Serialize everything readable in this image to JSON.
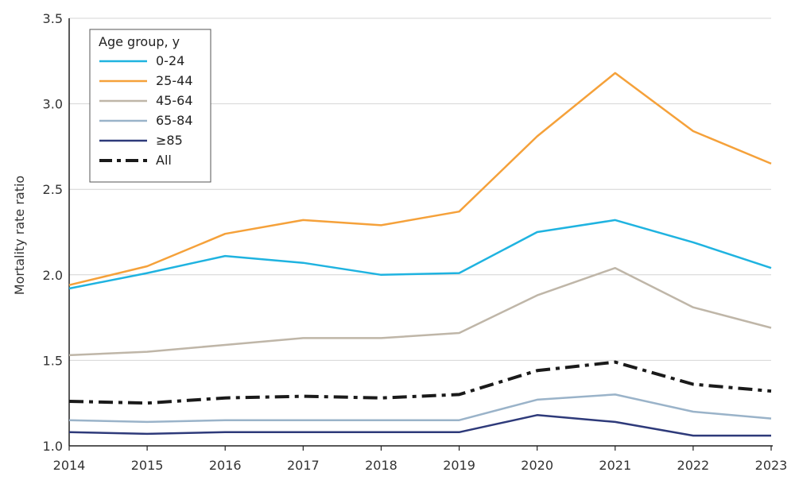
{
  "chart_data": {
    "type": "line",
    "xlabel": "",
    "ylabel": "Mortality rate ratio",
    "x": [
      "2014",
      "2015",
      "2016",
      "2017",
      "2018",
      "2019",
      "2020",
      "2021",
      "2022",
      "2023"
    ],
    "ylim": [
      1.0,
      3.5
    ],
    "yticks": [
      "1.0",
      "1.5",
      "2.0",
      "2.5",
      "3.0",
      "3.5"
    ],
    "grid": "horizontal",
    "legend": {
      "title": "Age group, y",
      "placement": "top-left"
    },
    "series": [
      {
        "name": "0-24",
        "color": "#1fb3e0",
        "dash": "solid",
        "values": [
          1.92,
          2.01,
          2.11,
          2.07,
          2.0,
          2.01,
          2.25,
          2.32,
          2.19,
          2.04
        ]
      },
      {
        "name": "25-44",
        "color": "#f5a13a",
        "dash": "solid",
        "values": [
          1.94,
          2.05,
          2.24,
          2.32,
          2.29,
          2.37,
          2.81,
          3.18,
          2.84,
          2.65
        ]
      },
      {
        "name": "45-64",
        "color": "#bfb6a8",
        "dash": "solid",
        "values": [
          1.53,
          1.55,
          1.59,
          1.63,
          1.63,
          1.66,
          1.88,
          2.04,
          1.81,
          1.69
        ]
      },
      {
        "name": "65-84",
        "color": "#9ab3c9",
        "dash": "solid",
        "values": [
          1.15,
          1.14,
          1.15,
          1.15,
          1.15,
          1.15,
          1.27,
          1.3,
          1.2,
          1.16
        ]
      },
      {
        "name": "≥85",
        "color": "#2e3a7a",
        "dash": "solid",
        "values": [
          1.08,
          1.07,
          1.08,
          1.08,
          1.08,
          1.08,
          1.18,
          1.14,
          1.06,
          1.06
        ]
      },
      {
        "name": "All",
        "color": "#1a1a1a",
        "dash": "dashdot",
        "values": [
          1.26,
          1.25,
          1.28,
          1.29,
          1.28,
          1.3,
          1.44,
          1.49,
          1.36,
          1.32
        ]
      }
    ]
  }
}
